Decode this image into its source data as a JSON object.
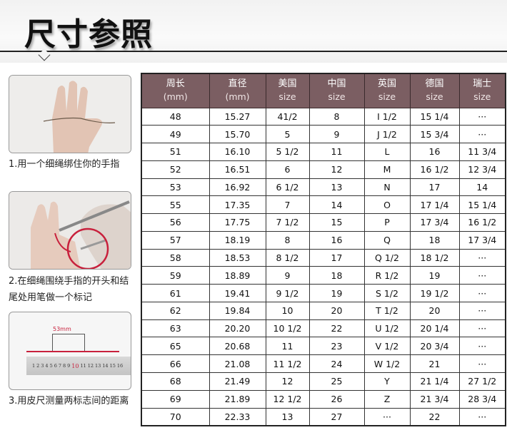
{
  "title": "尺寸参照",
  "steps": [
    {
      "caption": "1.用一个细绳绑住你的手指"
    },
    {
      "caption_line1": "2.在细绳围绕手指的开头和结",
      "caption_line2": "尾处用笔做一个标记"
    },
    {
      "caption": "3.用皮尺测量两标志间的距离",
      "measure_label": "53mm",
      "ruler_ticks": [
        "1",
        "2",
        "3",
        "4",
        "5",
        "6",
        "7",
        "8",
        "9",
        "10",
        "11",
        "12",
        "13",
        "14",
        "15",
        "16"
      ]
    }
  ],
  "colors": {
    "header_bg": "#7b5e62",
    "mark_red": "#c8203c"
  },
  "table": {
    "headers": [
      {
        "label": "周长",
        "sub": "(mm)"
      },
      {
        "label": "直径",
        "sub": "(mm)"
      },
      {
        "label": "美国",
        "sub": "size"
      },
      {
        "label": "中国",
        "sub": "size"
      },
      {
        "label": "英国",
        "sub": "size"
      },
      {
        "label": "德国",
        "sub": "size"
      },
      {
        "label": "瑞士",
        "sub": "size"
      }
    ],
    "rows": [
      [
        "48",
        "15.27",
        "41/2",
        "8",
        "I 1/2",
        "15 1/4",
        "···"
      ],
      [
        "49",
        "15.70",
        "5",
        "9",
        "J 1/2",
        "15 3/4",
        "···"
      ],
      [
        "51",
        "16.10",
        "5 1/2",
        "11",
        "L",
        "16",
        "11 3/4"
      ],
      [
        "52",
        "16.51",
        "6",
        "12",
        "M",
        "16 1/2",
        "12 3/4"
      ],
      [
        "53",
        "16.92",
        "6 1/2",
        "13",
        "N",
        "17",
        "14"
      ],
      [
        "55",
        "17.35",
        "7",
        "14",
        "O",
        "17 1/4",
        "15 1/4"
      ],
      [
        "56",
        "17.75",
        "7 1/2",
        "15",
        "P",
        "17 3/4",
        "16 1/2"
      ],
      [
        "57",
        "18.19",
        "8",
        "16",
        "Q",
        "18",
        "17 3/4"
      ],
      [
        "58",
        "18.53",
        "8 1/2",
        "17",
        "Q  1/2",
        "18 1/2",
        "···"
      ],
      [
        "59",
        "18.89",
        "9",
        "18",
        "R 1/2",
        "19",
        "···"
      ],
      [
        "61",
        "19.41",
        "9 1/2",
        "19",
        "S 1/2",
        "19 1/2",
        "···"
      ],
      [
        "62",
        "19.84",
        "10",
        "20",
        "T 1/2",
        "20",
        "···"
      ],
      [
        "63",
        "20.20",
        "10 1/2",
        "22",
        "U 1/2",
        "20 1/4",
        "···"
      ],
      [
        "65",
        "20.68",
        "11",
        "23",
        "V 1/2",
        "20 3/4",
        "···"
      ],
      [
        "66",
        "21.08",
        "11 1/2",
        "24",
        "W 1/2",
        "21",
        "···"
      ],
      [
        "68",
        "21.49",
        "12",
        "25",
        "Y",
        "21 1/4",
        "27 1/2"
      ],
      [
        "69",
        "21.89",
        "12 1/2",
        "26",
        "Z",
        "21 3/4",
        "28 3/4"
      ],
      [
        "70",
        "22.33",
        "13",
        "27",
        "···",
        "22",
        "···"
      ]
    ]
  }
}
